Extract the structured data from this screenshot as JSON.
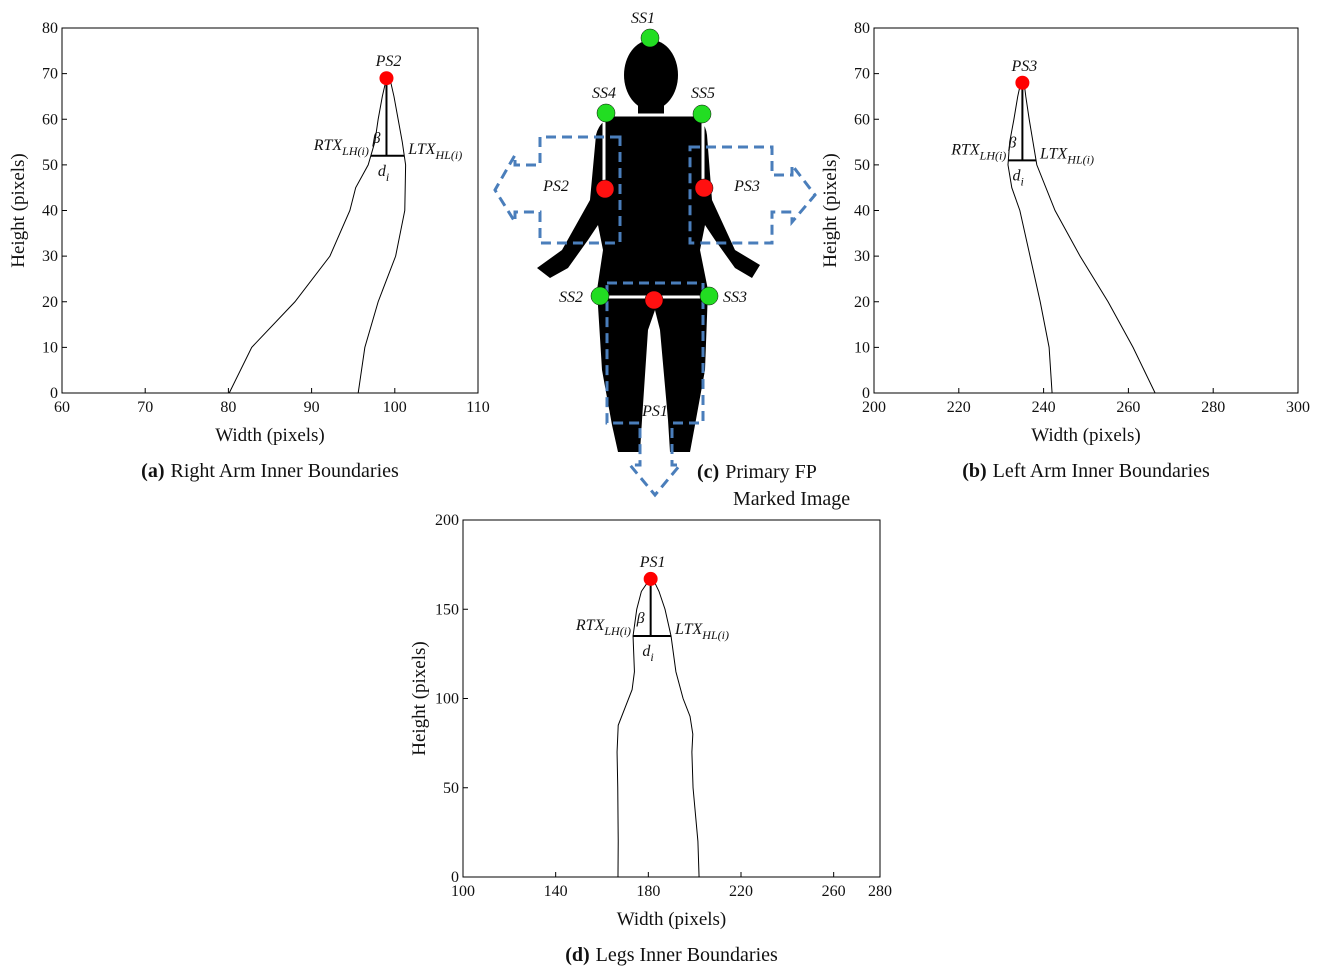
{
  "chart_data": [
    {
      "type": "line",
      "panel": "(a)",
      "caption": "Right Arm Inner Boundaries",
      "xlabel": "Width (pixels)",
      "ylabel": "Height (pixels)",
      "xlim": [
        60,
        110
      ],
      "ylim": [
        0,
        80
      ],
      "xticks": [
        60,
        70,
        80,
        90,
        100,
        110
      ],
      "yticks": [
        0,
        10,
        20,
        30,
        40,
        50,
        60,
        70,
        80
      ],
      "series": [
        {
          "color": "#000000",
          "x": [
            80.1,
            82.8,
            88,
            92.2,
            94.6,
            95.3,
            96.8,
            97.6,
            98,
            98.5,
            99
          ],
          "values": [
            0,
            10,
            20,
            30,
            40,
            45,
            50,
            55,
            60,
            65,
            69
          ]
        },
        {
          "color": "#000000",
          "x": [
            95.6,
            96.4,
            98,
            100.1,
            101.2,
            101.3,
            100.9,
            100.4,
            99.9,
            99.4
          ],
          "values": [
            0,
            10,
            20,
            30,
            40,
            50,
            55,
            60,
            65,
            69
          ]
        }
      ],
      "markers": [
        {
          "label": "PS2",
          "x": 99,
          "y": 69,
          "color": "#ff0000"
        }
      ],
      "width_line_y": 52,
      "angle_label": "β",
      "width_label": {
        "text": "d",
        "sub": "i"
      },
      "left_label": {
        "text": "RTX",
        "sub": "LH(i)"
      },
      "right_label": {
        "text": "LTX",
        "sub": "HL(i)"
      }
    },
    {
      "type": "line",
      "panel": "(b)",
      "caption": "Left Arm Inner Boundaries",
      "xlabel": "Width (pixels)",
      "ylabel": "Height (pixels)",
      "xlim": [
        200,
        300
      ],
      "ylim": [
        0,
        80
      ],
      "xticks": [
        200,
        220,
        240,
        260,
        280,
        300
      ],
      "yticks": [
        0,
        10,
        20,
        30,
        40,
        50,
        60,
        70,
        80
      ],
      "series": [
        {
          "color": "#000000",
          "x": [
            242,
            241.3,
            239.2,
            236.8,
            234.4,
            232.5,
            231.6,
            232,
            233,
            233.9,
            234.6
          ],
          "values": [
            0,
            10,
            20,
            30,
            40,
            45,
            50,
            55,
            60,
            65,
            68
          ]
        },
        {
          "color": "#000000",
          "x": [
            266.3,
            261.1,
            255.2,
            248.6,
            242.7,
            238.4,
            237.5,
            236.6,
            235.8,
            235.4
          ],
          "values": [
            0,
            10,
            20,
            30,
            40,
            50,
            55,
            60,
            65,
            68
          ]
        }
      ],
      "markers": [
        {
          "label": "PS3",
          "x": 235,
          "y": 68,
          "color": "#ff0000"
        }
      ],
      "width_line_y": 51,
      "angle_label": "β",
      "width_label": {
        "text": "d",
        "sub": "i"
      },
      "left_label": {
        "text": "RTX",
        "sub": "LH(i)"
      },
      "right_label": {
        "text": "LTX",
        "sub": "HL(i)"
      }
    },
    {
      "type": "line",
      "panel": "(d)",
      "caption": "Legs Inner Boundaries",
      "xlabel": "Width (pixels)",
      "ylabel": "Height (pixels)",
      "xlim": [
        100,
        280
      ],
      "ylim": [
        0,
        200
      ],
      "xticks": [
        100,
        140,
        180,
        220,
        260,
        280
      ],
      "yticks": [
        0,
        50,
        100,
        150,
        200
      ],
      "series": [
        {
          "color": "#000000",
          "x": [
            166.9,
            167,
            166.8,
            166.5,
            167,
            170,
            173,
            174,
            173.4,
            175,
            177,
            180.7
          ],
          "values": [
            0,
            20,
            50,
            70,
            85,
            95,
            105,
            115,
            135,
            150,
            160,
            167
          ]
        },
        {
          "color": "#000000",
          "x": [
            201.9,
            201.4,
            199.3,
            198.8,
            199.2,
            198,
            195,
            191.9,
            189.8,
            187.2,
            184.6,
            182
          ],
          "values": [
            0,
            20,
            50,
            70,
            80,
            90,
            100,
            115,
            135,
            150,
            160,
            167
          ]
        }
      ],
      "markers": [
        {
          "label": "PS1",
          "x": 181,
          "y": 167,
          "color": "#ff0000"
        }
      ],
      "width_line_y": 135,
      "angle_label": "β",
      "width_label": {
        "text": "d",
        "sub": "i"
      },
      "left_label": {
        "text": "RTX",
        "sub": "LH(i)"
      },
      "right_label": {
        "text": "LTX",
        "sub": "HL(i)"
      }
    }
  ],
  "figure_c": {
    "panel": "(c)",
    "caption_lines": [
      "Primary FP",
      "Marked Image"
    ],
    "labels": [
      "SS1",
      "SS4",
      "SS5",
      "PS2",
      "PS3",
      "SS2",
      "SS3",
      "PS1"
    ]
  }
}
